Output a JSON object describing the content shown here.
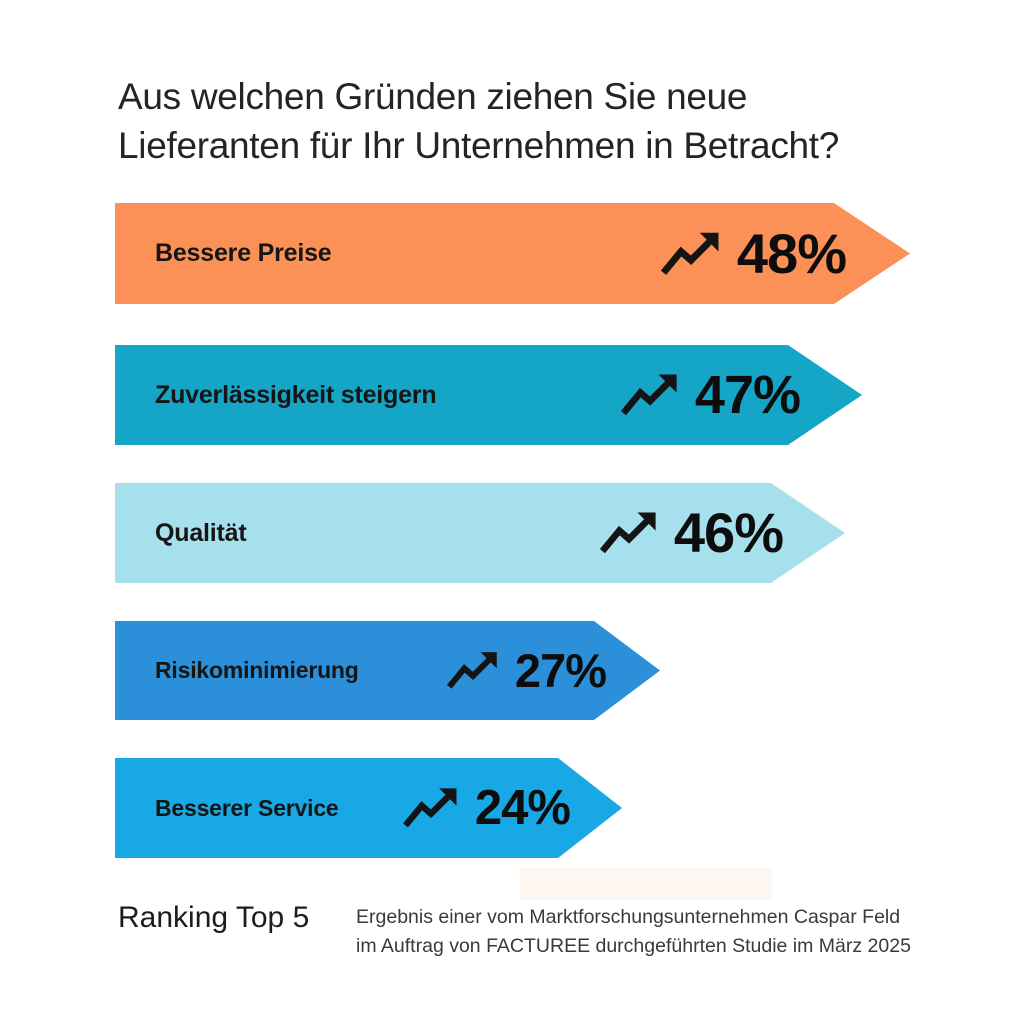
{
  "title": "Aus welchen Gründen ziehen Sie neue Lieferanten für Ihr Unternehmen in Betracht?",
  "chart_data": {
    "type": "bar",
    "orientation": "horizontal",
    "unit": "%",
    "categories": [
      "Bessere Preise",
      "Zuverlässigkeit steigern",
      "Qualität",
      "Risikominimierung",
      "Besserer Service"
    ],
    "values": [
      48,
      47,
      46,
      27,
      24
    ],
    "value_labels": [
      "48%",
      "47%",
      "46%",
      "27%",
      "24%"
    ],
    "bar_colors": [
      "#FB9156",
      "#14A5C7",
      "#A6E0ED",
      "#2B8FD9",
      "#18A8E5"
    ],
    "icon": "trending-up-arrow",
    "icon_color": "#141414",
    "title": "Aus welchen Gründen ziehen Sie neue Lieferanten für Ihr Unternehmen in Betracht?",
    "legend": false,
    "axes": false,
    "xlabel": "",
    "ylabel": ""
  },
  "footer": {
    "ranking_label": "Ranking Top 5",
    "source_line1": "Ergebnis einer vom Marktforschungsunternehmen Caspar Feld",
    "source_line2": "im Auftrag von FACTUREE durchgeführten Studie im März 2025"
  }
}
